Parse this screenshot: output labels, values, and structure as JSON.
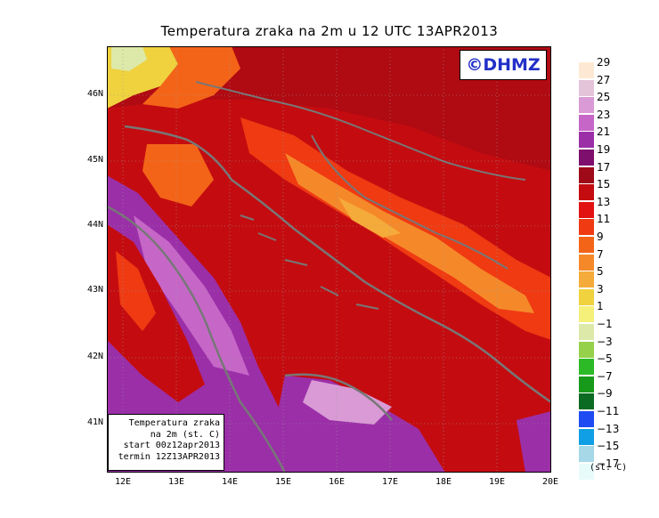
{
  "title": "Temperatura zraka na 2m u 12 UTC 13APR2013",
  "copyright": "©DHMZ",
  "info_box": {
    "line1": "Temperatura zraka",
    "line2": "na 2m (st. C)",
    "line3": "start 00z12apr2013",
    "line4": "termin 12Z13APR2013"
  },
  "units_label": "(st. C)",
  "lat_ticks": [
    "46N",
    "45N",
    "44N",
    "43N",
    "42N",
    "41N"
  ],
  "lon_ticks": [
    "12E",
    "13E",
    "14E",
    "15E",
    "16E",
    "17E",
    "18E",
    "19E",
    "20E"
  ],
  "legend_labels": [
    "29",
    "27",
    "25",
    "23",
    "21",
    "19",
    "17",
    "15",
    "13",
    "11",
    "9",
    "7",
    "5",
    "3",
    "1",
    "−1",
    "−3",
    "−5",
    "−7",
    "−9",
    "−11",
    "−13",
    "−15",
    "−17"
  ],
  "legend_colors": [
    "#fde9d3",
    "#e3c4d8",
    "#d99ad5",
    "#c667c8",
    "#9b2fa8",
    "#7e0f6c",
    "#9e0a18",
    "#c40c10",
    "#e21212",
    "#ef3a12",
    "#f46418",
    "#f5892a",
    "#f5ab3a",
    "#efd23e",
    "#f5f07a",
    "#dde9a8",
    "#96d14b",
    "#2cbb26",
    "#179a1a",
    "#0b6b23",
    "#1e4cf2",
    "#109fe5",
    "#a6d8e8",
    "#e8fbfb"
  ],
  "colors": {
    "sea": "#9b2fa8",
    "sea_warm": "#c667c8",
    "land_warm": "#c40c10",
    "land_cool": "#ef3a12",
    "alps_cold": "#f5f07a",
    "coast_line": "#777777"
  }
}
